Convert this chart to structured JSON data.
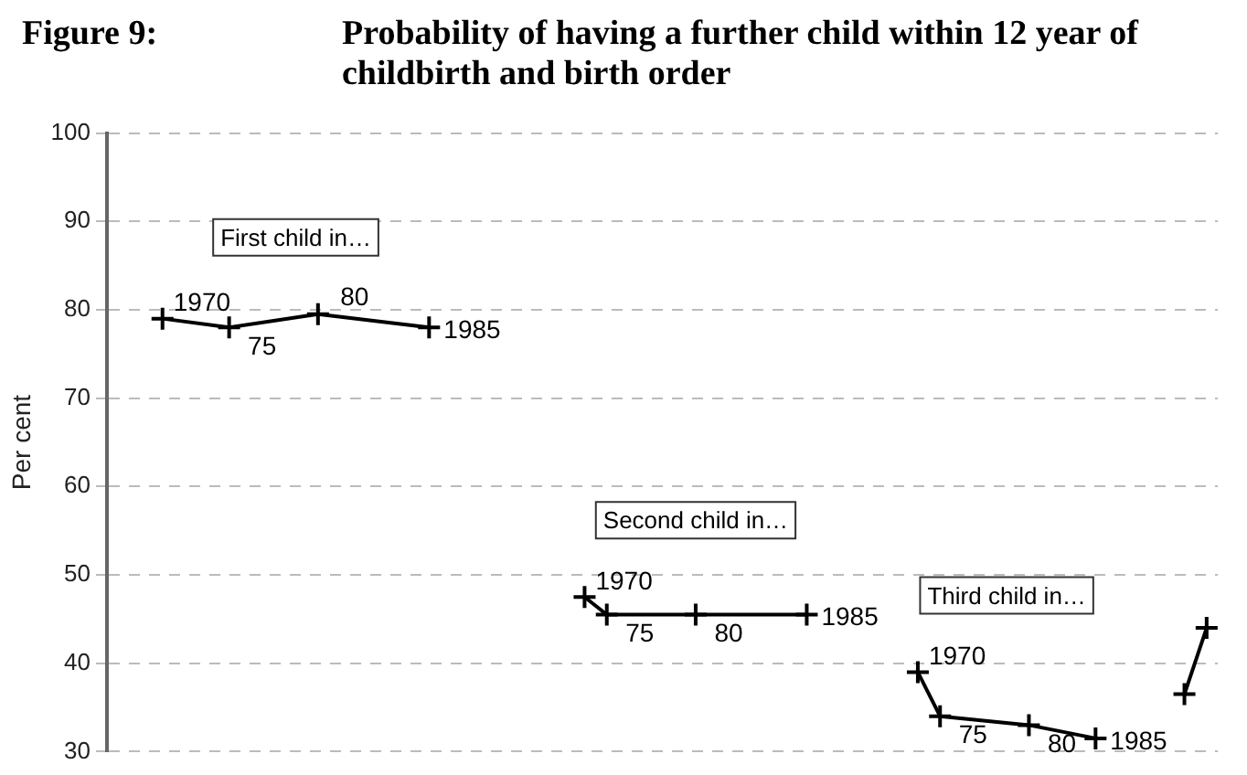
{
  "chart_data": {
    "type": "line",
    "title": "Figure 9:",
    "subtitle": "Probability of having a further child within 12 year of childbirth and birth order",
    "ylabel": "Per cent",
    "categories": [
      null,
      null,
      null,
      null,
      null,
      null,
      null,
      null,
      null,
      null,
      null,
      null,
      null,
      null,
      null,
      null,
      null,
      null,
      null,
      null,
      null,
      null,
      null,
      null,
      null,
      null,
      null,
      null,
      null,
      null,
      null,
      null,
      null,
      null,
      null,
      null,
      null,
      null,
      null,
      null,
      null,
      null,
      null,
      null,
      null,
      null,
      null,
      null,
      null,
      null
    ],
    "series": [
      {
        "color": "#000000",
        "values": [
          null,
          null,
          79,
          null,
          null,
          78,
          null,
          null,
          null,
          79.5,
          null,
          null,
          null,
          null,
          78,
          null,
          null,
          null,
          null,
          null,
          null,
          null,
          null,
          null,
          null,
          null,
          null,
          null,
          null,
          null,
          null,
          null,
          null,
          null,
          null,
          null,
          null,
          null,
          null,
          null,
          null,
          null,
          null,
          null,
          null,
          null,
          null,
          null,
          null,
          null
        ]
      },
      {
        "color": "#000000",
        "values": [
          null,
          null,
          null,
          null,
          null,
          null,
          null,
          null,
          null,
          null,
          null,
          null,
          null,
          null,
          null,
          null,
          null,
          null,
          null,
          null,
          null,
          47.5,
          45.5,
          null,
          null,
          null,
          45.5,
          null,
          null,
          null,
          null,
          45.5,
          null,
          null,
          null,
          null,
          null,
          null,
          null,
          null,
          null,
          null,
          null,
          null,
          null,
          null,
          null,
          null,
          null,
          null
        ]
      },
      {
        "color": "#000000",
        "values": [
          null,
          null,
          null,
          null,
          null,
          null,
          null,
          null,
          null,
          null,
          null,
          null,
          null,
          null,
          null,
          null,
          null,
          null,
          null,
          null,
          null,
          null,
          null,
          null,
          null,
          null,
          null,
          null,
          null,
          null,
          null,
          null,
          null,
          null,
          null,
          null,
          39,
          34,
          null,
          null,
          null,
          33,
          null,
          null,
          31.5,
          null,
          null,
          null,
          null,
          null
        ]
      },
      {
        "color": "#000000",
        "values": [
          null,
          null,
          null,
          null,
          null,
          null,
          null,
          null,
          null,
          null,
          null,
          null,
          null,
          null,
          null,
          null,
          null,
          null,
          null,
          null,
          null,
          null,
          null,
          null,
          null,
          null,
          null,
          null,
          null,
          null,
          null,
          null,
          null,
          null,
          null,
          null,
          null,
          null,
          null,
          null,
          null,
          null,
          null,
          null,
          null,
          null,
          null,
          null,
          36.5,
          44
        ]
      }
    ],
    "annotations": [
      "First child in…",
      "1970",
      "75",
      "80",
      "1985",
      "Second child in…",
      "1970",
      "75",
      "80",
      "1985",
      "Third child in…",
      "1970",
      "75",
      "80",
      "1985"
    ],
    "ylim": [
      30,
      100
    ],
    "yticks": [
      30,
      40,
      50,
      60,
      70,
      80,
      90,
      100
    ],
    "grid": "y",
    "legend": false,
    "marker": "cross",
    "line_style": "solid",
    "tick_labels": "y"
  }
}
